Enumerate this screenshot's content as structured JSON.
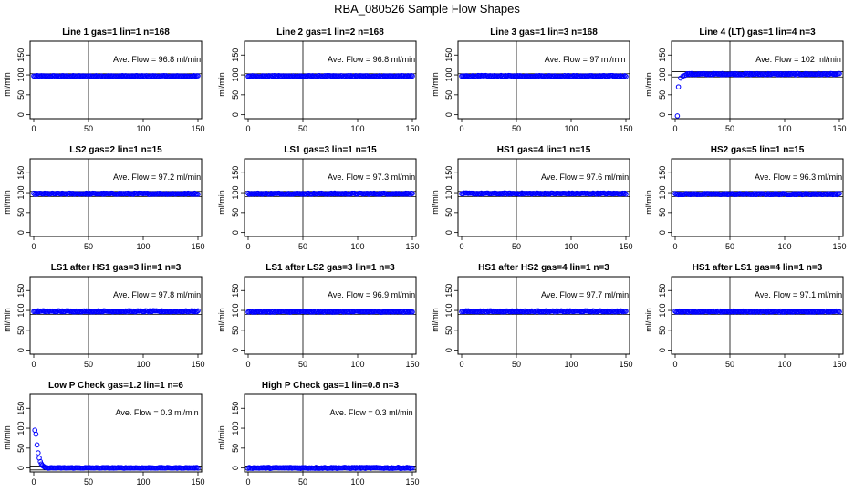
{
  "figure_title": "RBA_080526  Sample Flow Shapes",
  "chart_data": [
    {
      "type": "scatter",
      "title": "Line 1 gas=1 lin=1 n=168",
      "ylabel": "ml/min",
      "annotation": "Ave. Flow =  96.8  ml/min",
      "flow": 96.8,
      "shape": "flat",
      "xlim": [
        0,
        150
      ],
      "ylim": [
        -10,
        185
      ],
      "x_ticks": [
        0,
        50,
        100,
        150
      ],
      "y_ticks": [
        0,
        50,
        100,
        150
      ],
      "hlines": [
        90,
        103
      ],
      "vline": 50,
      "point_color": "#0000ff"
    },
    {
      "type": "scatter",
      "title": "Line 2 gas=1 lin=2 n=168",
      "ylabel": "ml/min",
      "annotation": "Ave. Flow =  96.8  ml/min",
      "flow": 96.8,
      "shape": "flat",
      "xlim": [
        0,
        150
      ],
      "ylim": [
        -10,
        185
      ],
      "x_ticks": [
        0,
        50,
        100,
        150
      ],
      "y_ticks": [
        0,
        50,
        100,
        150
      ],
      "hlines": [
        90,
        103
      ],
      "vline": 50,
      "point_color": "#0000ff"
    },
    {
      "type": "scatter",
      "title": "Line 3 gas=1 lin=3 n=168",
      "ylabel": "ml/min",
      "annotation": "Ave. Flow =  97  ml/min",
      "flow": 97,
      "shape": "flat",
      "xlim": [
        0,
        150
      ],
      "ylim": [
        -10,
        185
      ],
      "x_ticks": [
        0,
        50,
        100,
        150
      ],
      "y_ticks": [
        0,
        50,
        100,
        150
      ],
      "hlines": [
        90,
        103
      ],
      "vline": 50,
      "point_color": "#0000ff"
    },
    {
      "type": "scatter",
      "title": "Line 4 (LT) gas=1 lin=4 n=3",
      "ylabel": "ml/min",
      "annotation": "Ave. Flow =  102  ml/min",
      "flow": 102,
      "shape": "ramp-up",
      "xlim": [
        0,
        150
      ],
      "ylim": [
        -10,
        185
      ],
      "x_ticks": [
        0,
        50,
        100,
        150
      ],
      "y_ticks": [
        0,
        50,
        100,
        150
      ],
      "hlines": [
        95,
        108
      ],
      "vline": 50,
      "point_color": "#0000ff"
    },
    {
      "type": "scatter",
      "title": "LS2 gas=2 lin=1 n=15",
      "ylabel": "ml/min",
      "annotation": "Ave. Flow =  97.2  ml/min",
      "flow": 97.2,
      "shape": "flat",
      "xlim": [
        0,
        150
      ],
      "ylim": [
        -10,
        185
      ],
      "x_ticks": [
        0,
        50,
        100,
        150
      ],
      "y_ticks": [
        0,
        50,
        100,
        150
      ],
      "hlines": [
        90,
        103
      ],
      "vline": 50,
      "point_color": "#0000ff"
    },
    {
      "type": "scatter",
      "title": "LS1 gas=3 lin=1 n=15",
      "ylabel": "ml/min",
      "annotation": "Ave. Flow =  97.3  ml/min",
      "flow": 97.3,
      "shape": "flat",
      "xlim": [
        0,
        150
      ],
      "ylim": [
        -10,
        185
      ],
      "x_ticks": [
        0,
        50,
        100,
        150
      ],
      "y_ticks": [
        0,
        50,
        100,
        150
      ],
      "hlines": [
        90,
        103
      ],
      "vline": 50,
      "point_color": "#0000ff"
    },
    {
      "type": "scatter",
      "title": "HS1 gas=4 lin=1 n=15",
      "ylabel": "ml/min",
      "annotation": "Ave. Flow =  97.6  ml/min",
      "flow": 97.6,
      "shape": "flat",
      "xlim": [
        0,
        150
      ],
      "ylim": [
        -10,
        185
      ],
      "x_ticks": [
        0,
        50,
        100,
        150
      ],
      "y_ticks": [
        0,
        50,
        100,
        150
      ],
      "hlines": [
        90,
        103
      ],
      "vline": 50,
      "point_color": "#0000ff"
    },
    {
      "type": "scatter",
      "title": "HS2 gas=5 lin=1 n=15",
      "ylabel": "ml/min",
      "annotation": "Ave. Flow =  96.3  ml/min",
      "flow": 96.3,
      "shape": "flat",
      "xlim": [
        0,
        150
      ],
      "ylim": [
        -10,
        185
      ],
      "x_ticks": [
        0,
        50,
        100,
        150
      ],
      "y_ticks": [
        0,
        50,
        100,
        150
      ],
      "hlines": [
        90,
        103
      ],
      "vline": 50,
      "point_color": "#0000ff"
    },
    {
      "type": "scatter",
      "title": "LS1 after HS1 gas=3 lin=1 n=3",
      "ylabel": "ml/min",
      "annotation": "Ave. Flow =  97.8  ml/min",
      "flow": 97.8,
      "shape": "flat",
      "xlim": [
        0,
        150
      ],
      "ylim": [
        -10,
        185
      ],
      "x_ticks": [
        0,
        50,
        100,
        150
      ],
      "y_ticks": [
        0,
        50,
        100,
        150
      ],
      "hlines": [
        90,
        103
      ],
      "vline": 50,
      "point_color": "#0000ff"
    },
    {
      "type": "scatter",
      "title": "LS1 after LS2 gas=3 lin=1 n=3",
      "ylabel": "ml/min",
      "annotation": "Ave. Flow =  96.9  ml/min",
      "flow": 96.9,
      "shape": "flat",
      "xlim": [
        0,
        150
      ],
      "ylim": [
        -10,
        185
      ],
      "x_ticks": [
        0,
        50,
        100,
        150
      ],
      "y_ticks": [
        0,
        50,
        100,
        150
      ],
      "hlines": [
        90,
        103
      ],
      "vline": 50,
      "point_color": "#0000ff"
    },
    {
      "type": "scatter",
      "title": "HS1 after HS2 gas=4 lin=1 n=3",
      "ylabel": "ml/min",
      "annotation": "Ave. Flow =  97.7  ml/min",
      "flow": 97.7,
      "shape": "flat",
      "xlim": [
        0,
        150
      ],
      "ylim": [
        -10,
        185
      ],
      "x_ticks": [
        0,
        50,
        100,
        150
      ],
      "y_ticks": [
        0,
        50,
        100,
        150
      ],
      "hlines": [
        90,
        103
      ],
      "vline": 50,
      "point_color": "#0000ff"
    },
    {
      "type": "scatter",
      "title": "HS1 after LS1 gas=4 lin=1 n=3",
      "ylabel": "ml/min",
      "annotation": "Ave. Flow =  97.1  ml/min",
      "flow": 97.1,
      "shape": "flat",
      "xlim": [
        0,
        150
      ],
      "ylim": [
        -10,
        185
      ],
      "x_ticks": [
        0,
        50,
        100,
        150
      ],
      "y_ticks": [
        0,
        50,
        100,
        150
      ],
      "hlines": [
        90,
        103
      ],
      "vline": 50,
      "point_color": "#0000ff"
    },
    {
      "type": "scatter",
      "title": "Low P Check gas=1.2 lin=1 n=6",
      "ylabel": "ml/min",
      "annotation": "Ave. Flow =  0.3  ml/min",
      "flow": 0.3,
      "shape": "decay",
      "xlim": [
        0,
        150
      ],
      "ylim": [
        -10,
        185
      ],
      "x_ticks": [
        0,
        50,
        100,
        150
      ],
      "y_ticks": [
        0,
        50,
        100,
        150
      ],
      "hlines": [
        -5,
        5
      ],
      "vline": 50,
      "point_color": "#0000ff"
    },
    {
      "type": "scatter",
      "title": "High P Check gas=1 lin=0.8 n=3",
      "ylabel": "ml/min",
      "annotation": "Ave. Flow =  0.3  ml/min",
      "flow": 0.3,
      "shape": "flat",
      "xlim": [
        0,
        150
      ],
      "ylim": [
        -10,
        185
      ],
      "x_ticks": [
        0,
        50,
        100,
        150
      ],
      "y_ticks": [
        0,
        50,
        100,
        150
      ],
      "hlines": [
        -5,
        5
      ],
      "vline": 50,
      "point_color": "#0000ff"
    }
  ]
}
